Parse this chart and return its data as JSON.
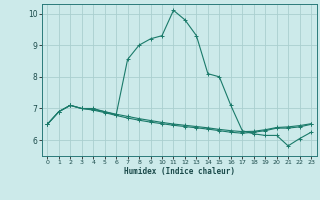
{
  "title": "",
  "xlabel": "Humidex (Indice chaleur)",
  "ylabel": "",
  "background_color": "#cceaea",
  "line_color": "#1a7a6a",
  "grid_color": "#aacfcf",
  "xlim": [
    -0.5,
    23.5
  ],
  "ylim": [
    5.5,
    10.3
  ],
  "xticks": [
    0,
    1,
    2,
    3,
    4,
    5,
    6,
    7,
    8,
    9,
    10,
    11,
    12,
    13,
    14,
    15,
    16,
    17,
    18,
    19,
    20,
    21,
    22,
    23
  ],
  "yticks": [
    6,
    7,
    8,
    9,
    10
  ],
  "lines": [
    {
      "x": [
        0,
        1,
        2,
        3,
        4,
        5,
        6,
        7,
        8,
        9,
        10,
        11,
        12,
        13,
        14,
        15,
        16,
        17,
        18,
        19,
        20,
        21,
        22,
        23
      ],
      "y": [
        6.5,
        6.9,
        7.1,
        7.0,
        7.0,
        6.9,
        6.8,
        8.55,
        9.0,
        9.2,
        9.3,
        10.1,
        9.8,
        9.3,
        8.1,
        8.0,
        7.1,
        6.3,
        6.2,
        6.15,
        6.15,
        5.82,
        6.05,
        6.25
      ]
    },
    {
      "x": [
        0,
        1,
        2,
        3,
        4,
        5,
        6,
        7,
        8,
        9,
        10,
        11,
        12,
        13,
        14,
        15,
        16,
        17,
        18,
        19,
        20,
        21,
        22,
        23
      ],
      "y": [
        6.5,
        6.9,
        7.1,
        7.0,
        6.95,
        6.87,
        6.78,
        6.7,
        6.63,
        6.57,
        6.52,
        6.47,
        6.43,
        6.39,
        6.35,
        6.3,
        6.25,
        6.22,
        6.25,
        6.3,
        6.38,
        6.38,
        6.42,
        6.5
      ]
    },
    {
      "x": [
        0,
        1,
        2,
        3,
        4,
        5,
        6,
        7,
        8,
        9,
        10,
        11,
        12,
        13,
        14,
        15,
        16,
        17,
        18,
        19,
        20,
        21,
        22,
        23
      ],
      "y": [
        6.5,
        6.9,
        7.1,
        7.0,
        6.97,
        6.9,
        6.82,
        6.75,
        6.68,
        6.62,
        6.56,
        6.51,
        6.47,
        6.43,
        6.39,
        6.34,
        6.3,
        6.27,
        6.28,
        6.33,
        6.4,
        6.42,
        6.46,
        6.52
      ]
    }
  ]
}
